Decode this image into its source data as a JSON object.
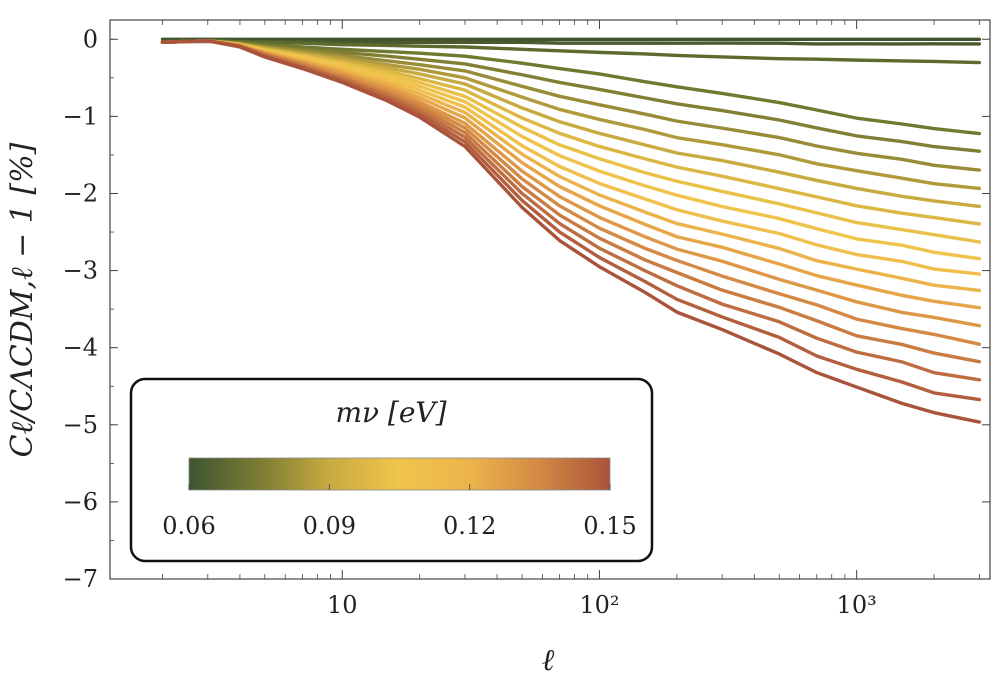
{
  "chart_data": {
    "type": "line",
    "title": "",
    "xlabel": "ℓ",
    "ylabel": "Cℓ/CΛCDM,ℓ − 1 [%]",
    "xscale": "log",
    "xlim": [
      1.25,
      3300
    ],
    "ylim": [
      -7,
      0.25
    ],
    "x_ticks": [
      10,
      100,
      1000
    ],
    "x_tick_labels": [
      "10",
      "10²",
      "10³"
    ],
    "y_ticks": [
      0,
      -1,
      -2,
      -3,
      -4,
      -5,
      -6,
      -7
    ],
    "y_tick_labels": [
      "0",
      "−1",
      "−2",
      "−3",
      "−4",
      "−5",
      "−6",
      "−7"
    ],
    "x": [
      2,
      3,
      4,
      5,
      7,
      10,
      15,
      20,
      30,
      50,
      70,
      100,
      150,
      200,
      300,
      500,
      700,
      1000,
      1500,
      2000,
      3000
    ],
    "series": [
      {
        "name": "0.060 eV",
        "color": "#3e5530",
        "values": [
          0,
          0,
          0,
          0,
          0,
          0,
          0,
          0,
          0,
          0,
          0,
          0,
          0,
          0,
          0,
          0,
          0,
          0,
          0,
          0,
          0
        ]
      },
      {
        "name": "0.065 eV",
        "color": "#4a5a2c",
        "values": [
          -0.03,
          -0.03,
          -0.03,
          -0.03,
          -0.03,
          -0.04,
          -0.04,
          -0.04,
          -0.04,
          -0.04,
          -0.05,
          -0.05,
          -0.05,
          -0.05,
          -0.05,
          -0.05,
          -0.06,
          -0.06,
          -0.06,
          -0.06,
          -0.06
        ]
      },
      {
        "name": "0.070 eV",
        "color": "#5c6b2e",
        "values": [
          -0.03,
          -0.02,
          -0.03,
          -0.04,
          -0.05,
          -0.07,
          -0.08,
          -0.09,
          -0.1,
          -0.13,
          -0.15,
          -0.17,
          -0.19,
          -0.21,
          -0.23,
          -0.25,
          -0.26,
          -0.27,
          -0.28,
          -0.29,
          -0.3
        ]
      },
      {
        "name": "0.075 eV",
        "color": "#6e7a30",
        "values": [
          -0.04,
          -0.02,
          -0.04,
          -0.07,
          -0.1,
          -0.13,
          -0.16,
          -0.18,
          -0.22,
          -0.31,
          -0.38,
          -0.45,
          -0.55,
          -0.62,
          -0.7,
          -0.82,
          -0.92,
          -1.02,
          -1.1,
          -1.16,
          -1.22
        ]
      },
      {
        "name": "0.080 eV",
        "color": "#827f34",
        "values": [
          -0.04,
          -0.02,
          -0.05,
          -0.09,
          -0.13,
          -0.17,
          -0.22,
          -0.26,
          -0.32,
          -0.46,
          -0.56,
          -0.65,
          -0.76,
          -0.84,
          -0.92,
          -1.05,
          -1.15,
          -1.25,
          -1.33,
          -1.39,
          -1.45
        ]
      },
      {
        "name": "0.085 eV",
        "color": "#988c38",
        "values": [
          -0.04,
          -0.02,
          -0.06,
          -0.1,
          -0.15,
          -0.21,
          -0.28,
          -0.33,
          -0.41,
          -0.61,
          -0.74,
          -0.85,
          -0.97,
          -1.06,
          -1.15,
          -1.28,
          -1.38,
          -1.48,
          -1.56,
          -1.63,
          -1.7
        ]
      },
      {
        "name": "0.090 eV",
        "color": "#b09a3c",
        "values": [
          -0.04,
          -0.02,
          -0.06,
          -0.11,
          -0.17,
          -0.24,
          -0.33,
          -0.39,
          -0.5,
          -0.75,
          -0.91,
          -1.04,
          -1.17,
          -1.27,
          -1.37,
          -1.5,
          -1.61,
          -1.71,
          -1.8,
          -1.87,
          -1.94
        ]
      },
      {
        "name": "0.095 eV",
        "color": "#c8aa40",
        "values": [
          -0.04,
          -0.02,
          -0.06,
          -0.12,
          -0.19,
          -0.27,
          -0.37,
          -0.45,
          -0.58,
          -0.89,
          -1.07,
          -1.22,
          -1.37,
          -1.47,
          -1.58,
          -1.72,
          -1.83,
          -1.94,
          -2.03,
          -2.1,
          -2.17
        ]
      },
      {
        "name": "0.100 eV",
        "color": "#dcb744",
        "values": [
          -0.04,
          -0.02,
          -0.07,
          -0.13,
          -0.21,
          -0.3,
          -0.41,
          -0.51,
          -0.66,
          -1.02,
          -1.22,
          -1.39,
          -1.55,
          -1.66,
          -1.78,
          -1.93,
          -2.05,
          -2.16,
          -2.25,
          -2.32,
          -2.39
        ]
      },
      {
        "name": "0.105 eV",
        "color": "#e9c148",
        "values": [
          -0.04,
          -0.02,
          -0.07,
          -0.14,
          -0.22,
          -0.32,
          -0.45,
          -0.56,
          -0.74,
          -1.14,
          -1.37,
          -1.55,
          -1.73,
          -1.85,
          -1.97,
          -2.13,
          -2.26,
          -2.37,
          -2.47,
          -2.54,
          -2.62
        ]
      },
      {
        "name": "0.110 eV",
        "color": "#f0c44c",
        "values": [
          -0.04,
          -0.02,
          -0.07,
          -0.15,
          -0.24,
          -0.35,
          -0.49,
          -0.61,
          -0.81,
          -1.26,
          -1.51,
          -1.71,
          -1.9,
          -2.03,
          -2.16,
          -2.33,
          -2.46,
          -2.58,
          -2.68,
          -2.76,
          -2.84
        ]
      },
      {
        "name": "0.115 eV",
        "color": "#f1bf4c",
        "values": [
          -0.04,
          -0.02,
          -0.08,
          -0.16,
          -0.26,
          -0.38,
          -0.53,
          -0.66,
          -0.88,
          -1.38,
          -1.65,
          -1.87,
          -2.07,
          -2.21,
          -2.35,
          -2.53,
          -2.66,
          -2.79,
          -2.89,
          -2.97,
          -3.05
        ]
      },
      {
        "name": "0.120 eV",
        "color": "#ecb34a",
        "values": [
          -0.04,
          -0.02,
          -0.08,
          -0.17,
          -0.28,
          -0.4,
          -0.57,
          -0.71,
          -0.95,
          -1.49,
          -1.78,
          -2.02,
          -2.24,
          -2.38,
          -2.53,
          -2.72,
          -2.86,
          -2.99,
          -3.1,
          -3.18,
          -3.27
        ]
      },
      {
        "name": "0.125 eV",
        "color": "#e6a548",
        "values": [
          -0.04,
          -0.02,
          -0.08,
          -0.17,
          -0.29,
          -0.43,
          -0.61,
          -0.76,
          -1.02,
          -1.6,
          -1.91,
          -2.16,
          -2.4,
          -2.55,
          -2.71,
          -2.91,
          -3.06,
          -3.2,
          -3.31,
          -3.4,
          -3.49
        ]
      },
      {
        "name": "0.130 eV",
        "color": "#de9746",
        "values": [
          -0.04,
          -0.02,
          -0.08,
          -0.18,
          -0.31,
          -0.45,
          -0.64,
          -0.81,
          -1.09,
          -1.71,
          -2.04,
          -2.31,
          -2.56,
          -2.72,
          -2.89,
          -3.1,
          -3.26,
          -3.41,
          -3.53,
          -3.62,
          -3.71
        ]
      },
      {
        "name": "0.135 eV",
        "color": "#d48944",
        "values": [
          -0.04,
          -0.02,
          -0.09,
          -0.19,
          -0.32,
          -0.48,
          -0.68,
          -0.85,
          -1.15,
          -1.81,
          -2.16,
          -2.45,
          -2.71,
          -2.88,
          -3.07,
          -3.29,
          -3.46,
          -3.62,
          -3.75,
          -3.84,
          -3.94
        ]
      },
      {
        "name": "0.140 eV",
        "color": "#c97b42",
        "values": [
          -0.04,
          -0.02,
          -0.09,
          -0.2,
          -0.34,
          -0.5,
          -0.71,
          -0.89,
          -1.21,
          -1.91,
          -2.28,
          -2.58,
          -2.86,
          -3.04,
          -3.24,
          -3.48,
          -3.66,
          -3.83,
          -3.97,
          -4.07,
          -4.17
        ]
      },
      {
        "name": "0.145 eV",
        "color": "#be6d40",
        "values": [
          -0.04,
          -0.02,
          -0.09,
          -0.21,
          -0.35,
          -0.52,
          -0.74,
          -0.93,
          -1.27,
          -2.0,
          -2.39,
          -2.71,
          -3.0,
          -3.2,
          -3.42,
          -3.68,
          -3.87,
          -4.05,
          -4.2,
          -4.31,
          -4.42
        ]
      },
      {
        "name": "0.150 eV",
        "color": "#b35f3e",
        "values": [
          -0.04,
          -0.02,
          -0.09,
          -0.22,
          -0.37,
          -0.54,
          -0.77,
          -0.97,
          -1.33,
          -2.09,
          -2.5,
          -2.83,
          -3.14,
          -3.36,
          -3.6,
          -3.88,
          -4.09,
          -4.29,
          -4.45,
          -4.57,
          -4.69
        ]
      },
      {
        "name": "0.155 eV",
        "color": "#a9533b",
        "values": [
          -0.04,
          -0.02,
          -0.1,
          -0.23,
          -0.38,
          -0.56,
          -0.8,
          -1.01,
          -1.39,
          -2.18,
          -2.61,
          -2.95,
          -3.28,
          -3.52,
          -3.78,
          -4.08,
          -4.31,
          -4.53,
          -4.71,
          -4.84,
          -4.98
        ]
      }
    ],
    "colorbar": {
      "title": "mν [eV]",
      "min": 0.06,
      "max": 0.15,
      "ticks": [
        0.06,
        0.09,
        0.12,
        0.15
      ],
      "tick_labels": [
        "0.06",
        "0.09",
        "0.12",
        "0.15"
      ],
      "stops": [
        {
          "value": 0.06,
          "color": "#3e5530"
        },
        {
          "value": 0.075,
          "color": "#7a7c32"
        },
        {
          "value": 0.09,
          "color": "#c8aa40"
        },
        {
          "value": 0.105,
          "color": "#f0c54c"
        },
        {
          "value": 0.12,
          "color": "#ecb44a"
        },
        {
          "value": 0.135,
          "color": "#d28a44"
        },
        {
          "value": 0.15,
          "color": "#a9533b"
        }
      ]
    }
  }
}
